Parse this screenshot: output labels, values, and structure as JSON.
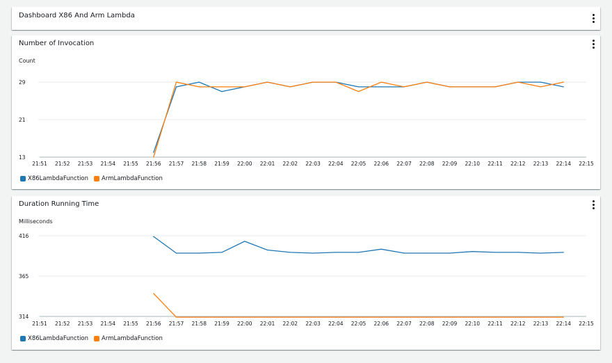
{
  "header": {
    "title": "Dashboard X86 And Arm Lambda"
  },
  "colors": {
    "x86": "#1f77b4",
    "arm": "#ff7f0e",
    "grid": "#e9ebed"
  },
  "icons": {
    "menu": "vertical-ellipsis-icon"
  },
  "chart_data": [
    {
      "type": "line",
      "title": "Number of Invocation",
      "ylabel": "Count",
      "xlabel": "",
      "x": [
        "21:51",
        "21:52",
        "21:53",
        "21:54",
        "21:55",
        "21:56",
        "21:57",
        "21:58",
        "21:59",
        "22:00",
        "22:01",
        "22:02",
        "22:03",
        "22:04",
        "22:05",
        "22:06",
        "22:07",
        "22:08",
        "22:09",
        "22:10",
        "22:11",
        "22:12",
        "22:13",
        "22:14",
        "22:15"
      ],
      "yticks": [
        13,
        21,
        29
      ],
      "ylim": [
        13,
        30.5
      ],
      "grid": true,
      "legend": "bottom-left",
      "series": [
        {
          "name": "X86LambdaFunction",
          "color": "#1f77b4",
          "values": [
            null,
            null,
            null,
            null,
            null,
            14,
            28,
            29,
            27,
            28,
            29,
            28,
            29,
            29,
            28,
            28,
            28,
            29,
            28,
            28,
            28,
            29,
            29,
            28,
            null
          ]
        },
        {
          "name": "ArmLambdaFunction",
          "color": "#ff7f0e",
          "values": [
            null,
            null,
            null,
            null,
            null,
            13,
            29,
            28,
            28,
            28,
            29,
            28,
            29,
            29,
            27,
            29,
            28,
            29,
            28,
            28,
            28,
            29,
            28,
            29,
            null
          ]
        }
      ]
    },
    {
      "type": "line",
      "title": "Duration Running Time",
      "ylabel": "Milliseconds",
      "xlabel": "",
      "x": [
        "21:51",
        "21:52",
        "21:53",
        "21:54",
        "21:55",
        "21:56",
        "21:57",
        "21:58",
        "21:59",
        "22:00",
        "22:01",
        "22:02",
        "22:03",
        "22:04",
        "22:05",
        "22:06",
        "22:07",
        "22:08",
        "22:09",
        "22:10",
        "22:11",
        "22:12",
        "22:13",
        "22:14",
        "22:15"
      ],
      "yticks": [
        314,
        365,
        416
      ],
      "ylim": [
        314,
        416
      ],
      "grid": true,
      "legend": "bottom-left",
      "series": [
        {
          "name": "X86LambdaFunction",
          "color": "#1f77b4",
          "values": [
            null,
            null,
            null,
            null,
            null,
            415,
            394,
            394,
            395,
            409,
            398,
            395,
            394,
            395,
            395,
            399,
            394,
            394,
            394,
            396,
            395,
            395,
            394,
            395,
            null
          ]
        },
        {
          "name": "ArmLambdaFunction",
          "color": "#ff7f0e",
          "values": [
            null,
            null,
            null,
            null,
            null,
            343,
            313,
            313,
            313,
            313,
            313,
            313,
            313,
            313,
            313,
            313,
            313,
            313,
            313,
            313,
            313,
            313,
            313,
            313,
            null
          ]
        }
      ]
    }
  ]
}
